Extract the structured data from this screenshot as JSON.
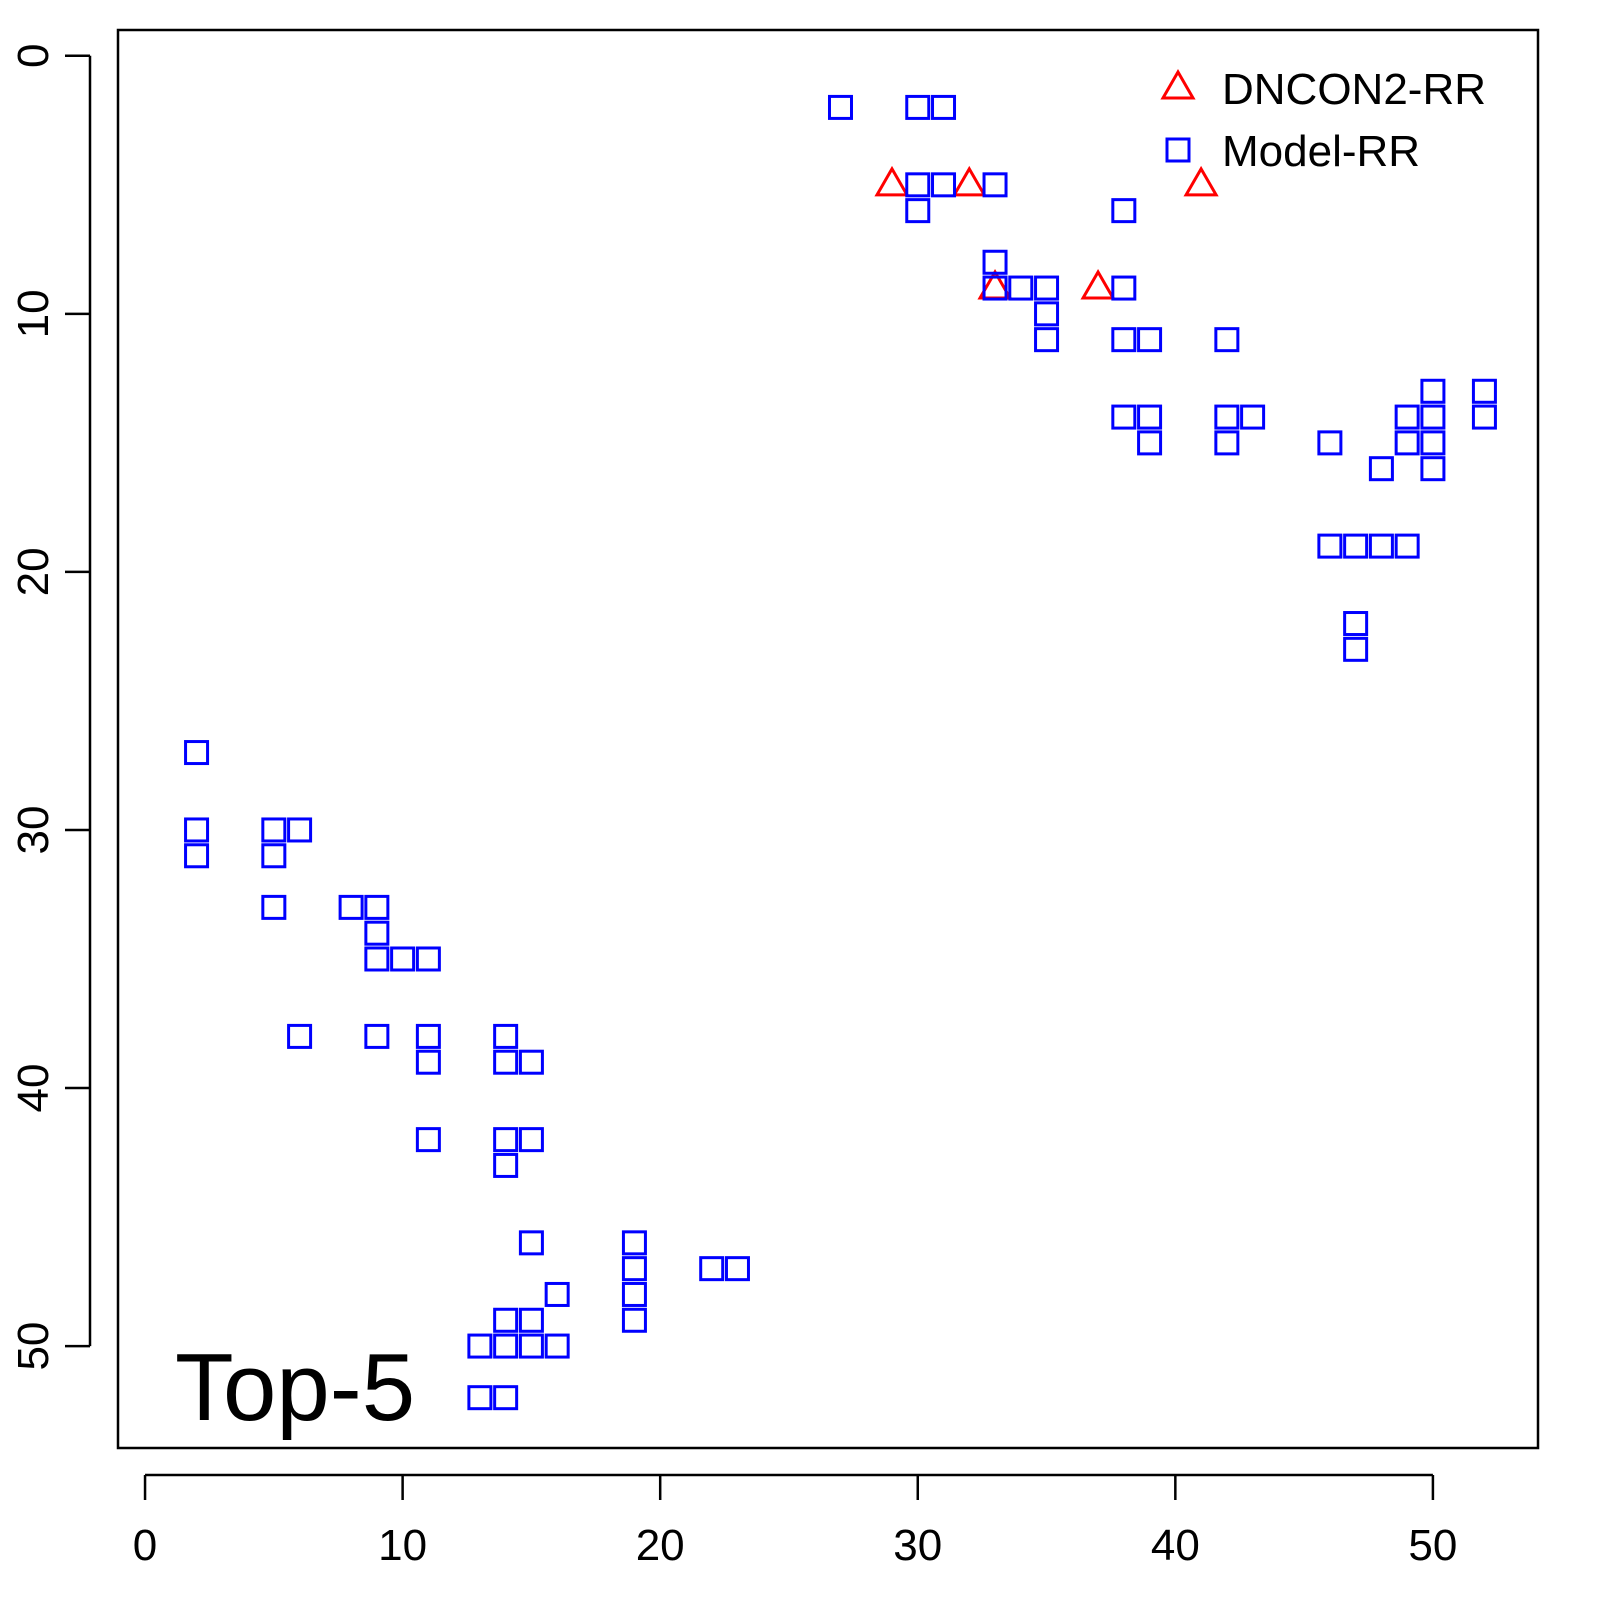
{
  "chart_data": {
    "type": "scatter",
    "annotation": "Top-5",
    "xlim": [
      -1.05,
      54.08
    ],
    "ylim": [
      53.95,
      -1.0
    ],
    "xticks": [
      0,
      10,
      20,
      30,
      40,
      50
    ],
    "yticks": [
      0,
      10,
      20,
      30,
      40,
      50
    ],
    "legend": "top-right",
    "series": [
      {
        "name": "DNCON2-RR",
        "color": "#ff0000",
        "marker": "triangle",
        "x": [
          29,
          32,
          41,
          33,
          37
        ],
        "values": [
          5,
          5,
          5,
          9,
          9
        ]
      },
      {
        "name": "Model-RR",
        "color": "#0000ff",
        "marker": "square",
        "x": [
          27,
          30,
          31,
          30,
          31,
          33,
          30,
          38,
          33,
          33,
          34,
          35,
          38,
          35,
          35,
          38,
          39,
          42,
          50,
          52,
          38,
          39,
          42,
          43,
          49,
          50,
          52,
          39,
          42,
          46,
          49,
          50,
          48,
          50,
          46,
          47,
          48,
          49,
          47,
          47,
          2,
          2,
          5,
          6,
          2,
          5,
          5,
          8,
          9,
          9,
          9,
          10,
          11,
          6,
          9,
          11,
          14,
          11,
          14,
          15,
          11,
          14,
          15,
          14,
          15,
          19,
          19,
          22,
          23,
          16,
          19,
          14,
          15,
          19,
          13,
          14,
          15,
          16,
          13,
          14
        ],
        "values": [
          2,
          2,
          2,
          5,
          5,
          5,
          6,
          6,
          8,
          9,
          9,
          9,
          9,
          10,
          11,
          11,
          11,
          11,
          13,
          13,
          14,
          14,
          14,
          14,
          14,
          14,
          14,
          15,
          15,
          15,
          15,
          15,
          16,
          16,
          19,
          19,
          19,
          19,
          22,
          23,
          27,
          30,
          30,
          30,
          31,
          31,
          33,
          33,
          33,
          34,
          35,
          35,
          35,
          38,
          38,
          38,
          38,
          39,
          39,
          39,
          42,
          42,
          42,
          43,
          46,
          46,
          47,
          47,
          47,
          48,
          48,
          49,
          49,
          49,
          50,
          50,
          50,
          50,
          52,
          52
        ]
      }
    ]
  }
}
